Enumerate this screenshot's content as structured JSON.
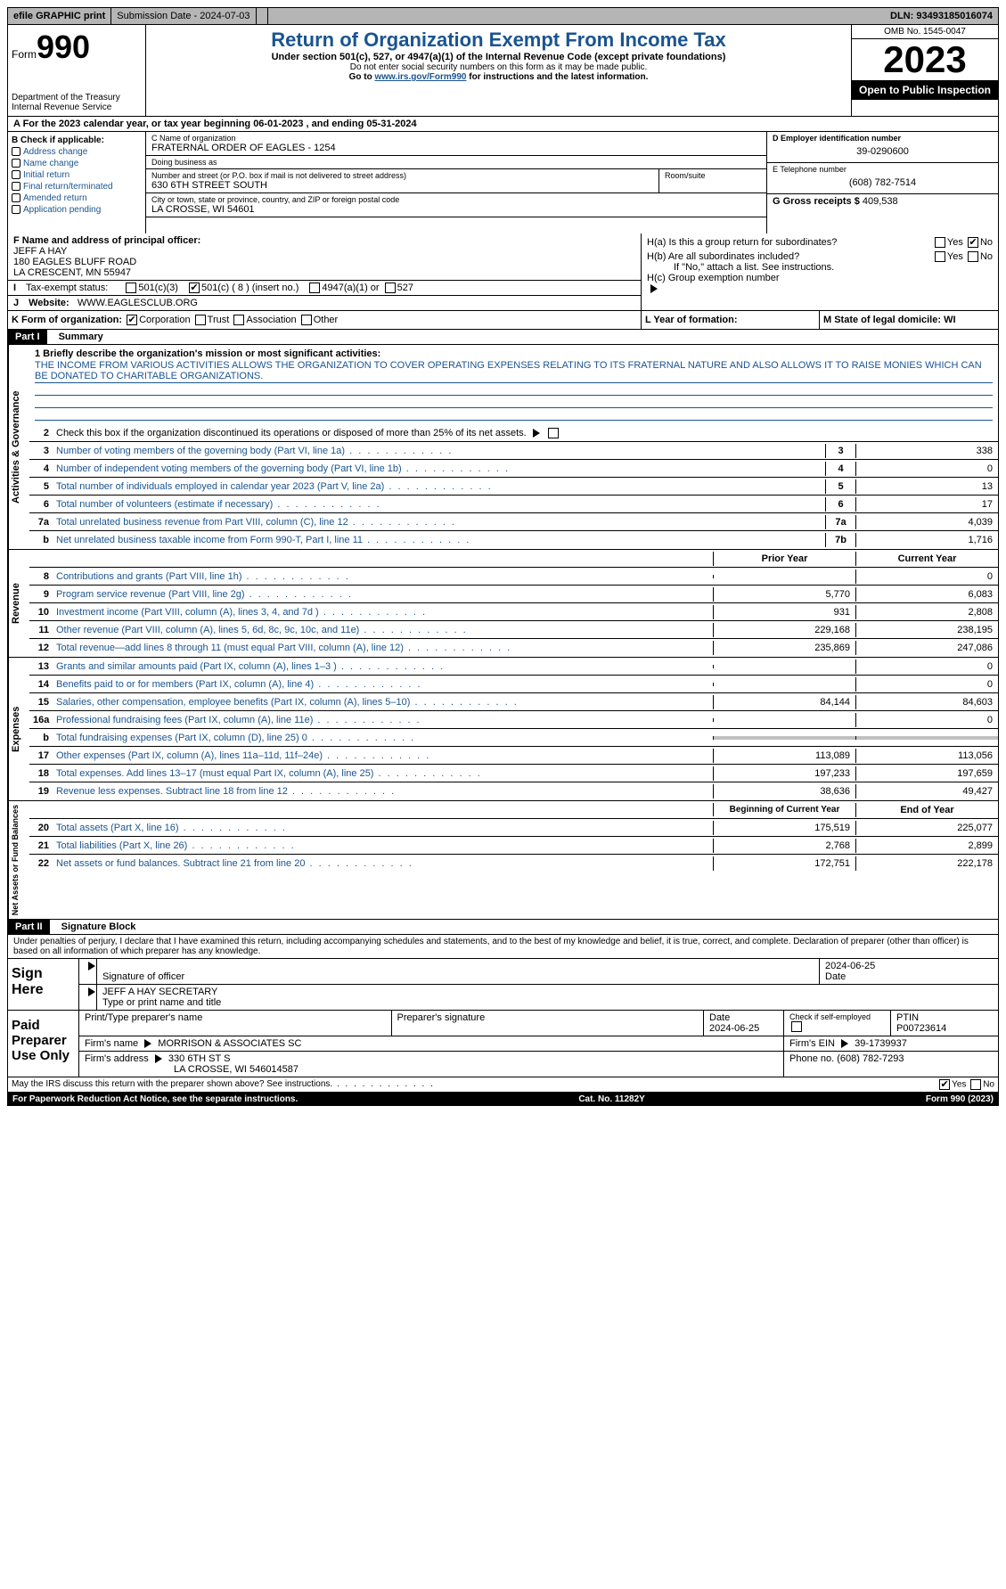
{
  "topbar": {
    "efile": "efile GRAPHIC print",
    "submission": "Submission Date - 2024-07-03",
    "dln": "DLN: 93493185016074"
  },
  "header": {
    "form_label": "Form",
    "form_num": "990",
    "dept": "Department of the Treasury",
    "irs": "Internal Revenue Service",
    "title": "Return of Organization Exempt From Income Tax",
    "sub": "Under section 501(c), 527, or 4947(a)(1) of the Internal Revenue Code (except private foundations)",
    "nossn": "Do not enter social security numbers on this form as it may be made public.",
    "goto_pre": "Go to ",
    "goto_link": "www.irs.gov/Form990",
    "goto_post": " for instructions and the latest information.",
    "omb": "OMB No. 1545-0047",
    "year": "2023",
    "open": "Open to Public Inspection"
  },
  "row_a": "A For the 2023 calendar year, or tax year beginning 06-01-2023   , and ending 05-31-2024",
  "section_b": {
    "label": "B Check if applicable:",
    "opts": [
      "Address change",
      "Name change",
      "Initial return",
      "Final return/terminated",
      "Amended return",
      "Application pending"
    ]
  },
  "section_c": {
    "name_lbl": "C Name of organization",
    "name": "FRATERNAL ORDER OF EAGLES - 1254",
    "dba_lbl": "Doing business as",
    "dba": "",
    "addr_lbl": "Number and street (or P.O. box if mail is not delivered to street address)",
    "addr": "630 6TH STREET SOUTH",
    "room_lbl": "Room/suite",
    "city_lbl": "City or town, state or province, country, and ZIP or foreign postal code",
    "city": "LA CROSSE, WI  54601"
  },
  "section_d": {
    "ein_lbl": "D Employer identification number",
    "ein": "39-0290600",
    "phone_lbl": "E Telephone number",
    "phone": "(608) 782-7514",
    "gross_lbl": "G Gross receipts $",
    "gross": "409,538"
  },
  "section_f": {
    "lbl": "F Name and address of principal officer:",
    "name": "JEFF A HAY",
    "addr1": "180 EAGLES BLUFF ROAD",
    "addr2": "LA CRESCENT, MN  55947"
  },
  "section_h": {
    "a": "H(a)  Is this a group return for subordinates?",
    "b": "H(b)  Are all subordinates included?",
    "b_note": "If \"No,\" attach a list. See instructions.",
    "c": "H(c)  Group exemption number",
    "yes": "Yes",
    "no": "No"
  },
  "row_i": {
    "lbl": "Tax-exempt status:",
    "o1": "501(c)(3)",
    "o2": "501(c) ( 8 ) (insert no.)",
    "o3": "4947(a)(1) or",
    "o4": "527"
  },
  "row_j": {
    "lbl": "Website:",
    "val": "WWW.EAGLESCLUB.ORG"
  },
  "row_k": {
    "form_lbl": "K Form of organization:",
    "o1": "Corporation",
    "o2": "Trust",
    "o3": "Association",
    "o4": "Other",
    "l_lbl": "L Year of formation:",
    "m_lbl": "M State of legal domicile: WI"
  },
  "part1": {
    "hdr": "Part I",
    "title": "Summary"
  },
  "mission": {
    "lbl": "1  Briefly describe the organization's mission or most significant activities:",
    "text": "THE INCOME FROM VARIOUS ACTIVITIES ALLOWS THE ORGANIZATION TO COVER OPERATING EXPENSES RELATING TO ITS FRATERNAL NATURE AND ALSO ALLOWS IT TO RAISE MONIES WHICH CAN BE DONATED TO CHARITABLE ORGANIZATIONS."
  },
  "gov": {
    "label": "Activities & Governance",
    "r2": "Check this box        if the organization discontinued its operations or disposed of more than 25% of its net assets.",
    "rows": [
      {
        "n": "3",
        "d": "Number of voting members of the governing body (Part VI, line 1a)",
        "bn": "3",
        "v": "338"
      },
      {
        "n": "4",
        "d": "Number of independent voting members of the governing body (Part VI, line 1b)",
        "bn": "4",
        "v": "0"
      },
      {
        "n": "5",
        "d": "Total number of individuals employed in calendar year 2023 (Part V, line 2a)",
        "bn": "5",
        "v": "13"
      },
      {
        "n": "6",
        "d": "Total number of volunteers (estimate if necessary)",
        "bn": "6",
        "v": "17"
      },
      {
        "n": "7a",
        "d": "Total unrelated business revenue from Part VIII, column (C), line 12",
        "bn": "7a",
        "v": "4,039"
      },
      {
        "n": "b",
        "d": "Net unrelated business taxable income from Form 990-T, Part I, line 11",
        "bn": "7b",
        "v": "1,716"
      }
    ]
  },
  "rev": {
    "label": "Revenue",
    "hdr_prior": "Prior Year",
    "hdr_curr": "Current Year",
    "rows": [
      {
        "n": "8",
        "d": "Contributions and grants (Part VIII, line 1h)",
        "p": "",
        "c": "0"
      },
      {
        "n": "9",
        "d": "Program service revenue (Part VIII, line 2g)",
        "p": "5,770",
        "c": "6,083"
      },
      {
        "n": "10",
        "d": "Investment income (Part VIII, column (A), lines 3, 4, and 7d )",
        "p": "931",
        "c": "2,808"
      },
      {
        "n": "11",
        "d": "Other revenue (Part VIII, column (A), lines 5, 6d, 8c, 9c, 10c, and 11e)",
        "p": "229,168",
        "c": "238,195"
      },
      {
        "n": "12",
        "d": "Total revenue—add lines 8 through 11 (must equal Part VIII, column (A), line 12)",
        "p": "235,869",
        "c": "247,086"
      }
    ]
  },
  "exp": {
    "label": "Expenses",
    "rows": [
      {
        "n": "13",
        "d": "Grants and similar amounts paid (Part IX, column (A), lines 1–3 )",
        "p": "",
        "c": "0"
      },
      {
        "n": "14",
        "d": "Benefits paid to or for members (Part IX, column (A), line 4)",
        "p": "",
        "c": "0"
      },
      {
        "n": "15",
        "d": "Salaries, other compensation, employee benefits (Part IX, column (A), lines 5–10)",
        "p": "84,144",
        "c": "84,603"
      },
      {
        "n": "16a",
        "d": "Professional fundraising fees (Part IX, column (A), line 11e)",
        "p": "",
        "c": "0"
      },
      {
        "n": "b",
        "d": "Total fundraising expenses (Part IX, column (D), line 25) 0",
        "p": "grey",
        "c": "grey"
      },
      {
        "n": "17",
        "d": "Other expenses (Part IX, column (A), lines 11a–11d, 11f–24e)",
        "p": "113,089",
        "c": "113,056"
      },
      {
        "n": "18",
        "d": "Total expenses. Add lines 13–17 (must equal Part IX, column (A), line 25)",
        "p": "197,233",
        "c": "197,659"
      },
      {
        "n": "19",
        "d": "Revenue less expenses. Subtract line 18 from line 12",
        "p": "38,636",
        "c": "49,427"
      }
    ]
  },
  "net": {
    "label": "Net Assets or Fund Balances",
    "hdr_beg": "Beginning of Current Year",
    "hdr_end": "End of Year",
    "rows": [
      {
        "n": "20",
        "d": "Total assets (Part X, line 16)",
        "p": "175,519",
        "c": "225,077"
      },
      {
        "n": "21",
        "d": "Total liabilities (Part X, line 26)",
        "p": "2,768",
        "c": "2,899"
      },
      {
        "n": "22",
        "d": "Net assets or fund balances. Subtract line 21 from line 20",
        "p": "172,751",
        "c": "222,178"
      }
    ]
  },
  "part2": {
    "hdr": "Part II",
    "title": "Signature Block",
    "decl": "Under penalties of perjury, I declare that I have examined this return, including accompanying schedules and statements, and to the best of my knowledge and belief, it is true, correct, and complete. Declaration of preparer (other than officer) is based on all information of which preparer has any knowledge."
  },
  "sign": {
    "label": "Sign Here",
    "sig_lbl": "Signature of officer",
    "date": "2024-06-25",
    "date_lbl": "Date",
    "name": "JEFF A HAY SECRETARY",
    "name_lbl": "Type or print name and title"
  },
  "paid": {
    "label": "Paid Preparer Use Only",
    "prep_name_lbl": "Print/Type preparer's name",
    "prep_sig_lbl": "Preparer's signature",
    "date_lbl": "Date",
    "date": "2024-06-25",
    "check_lbl": "Check         if self-employed",
    "ptin_lbl": "PTIN",
    "ptin": "P00723614",
    "firm_name_lbl": "Firm's name",
    "firm_name": "MORRISON & ASSOCIATES SC",
    "firm_ein_lbl": "Firm's EIN",
    "firm_ein": "39-1739937",
    "firm_addr_lbl": "Firm's address",
    "firm_addr1": "330 6TH ST S",
    "firm_addr2": "LA CROSSE, WI  546014587",
    "phone_lbl": "Phone no.",
    "phone": "(608) 782-7293"
  },
  "discuss": "May the IRS discuss this return with the preparer shown above? See instructions.",
  "footer": {
    "pra": "For Paperwork Reduction Act Notice, see the separate instructions.",
    "cat": "Cat. No. 11282Y",
    "form": "Form 990 (2023)"
  }
}
